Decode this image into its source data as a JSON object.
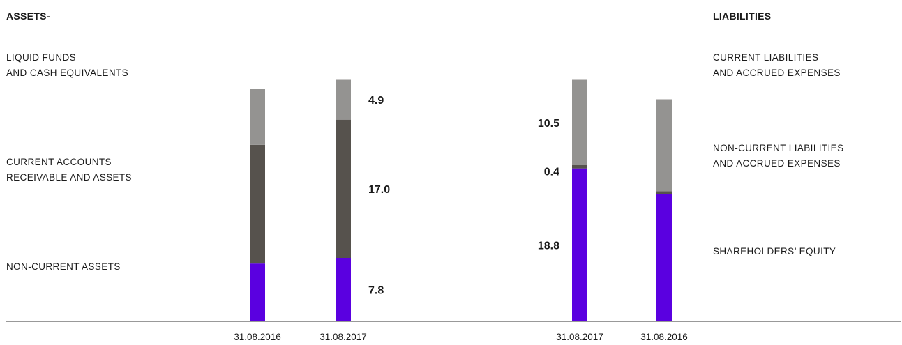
{
  "colors": {
    "non_current_assets": "#5a00e0",
    "current_assets": "#56524d",
    "liquid_funds": "#949391",
    "equity": "#5a00e0",
    "non_current_liabilities": "#56524d",
    "current_liabilities": "#949391",
    "axis": "#333333"
  },
  "headers": {
    "assets": "ASSETS-",
    "liabilities": "LIABILITIES"
  },
  "assets_labels": {
    "liquid_line1": "LIQUID FUNDS",
    "liquid_line2": "AND CASH EQUIVALENTS",
    "current_line1": "CURRENT ACCOUNTS",
    "current_line2": "RECEIVABLE AND ASSETS",
    "noncurrent": "NON-CURRENT ASSETS"
  },
  "liabilities_labels": {
    "current_line1": "CURRENT LIABILITIES",
    "current_line2": "AND ACCRUED EXPENSES",
    "noncurrent_line1": "NON-CURRENT LIABILITIES",
    "noncurrent_line2": "AND ACCRUED EXPENSES",
    "equity": "SHAREHOLDERS’ EQUITY"
  },
  "chart_data": [
    {
      "type": "bar",
      "stacked": true,
      "title": "ASSETS-",
      "categories": [
        "31.08.2016",
        "31.08.2017"
      ],
      "series": [
        {
          "name": "NON-CURRENT ASSETS",
          "values": [
            7.1,
            7.8
          ]
        },
        {
          "name": "CURRENT ACCOUNTS RECEIVABLE AND ASSETS",
          "values": [
            14.6,
            17.0
          ]
        },
        {
          "name": "LIQUID FUNDS AND CASH EQUIVALENTS",
          "values": [
            6.9,
            4.9
          ]
        }
      ],
      "data_labels": [
        "7.8",
        "17.0",
        "4.9"
      ],
      "ylim": [
        0,
        33
      ],
      "grid": false
    },
    {
      "type": "bar",
      "stacked": true,
      "title": "LIABILITIES",
      "categories": [
        "31.08.2017",
        "31.08.2016"
      ],
      "series": [
        {
          "name": "SHAREHOLDERS’ EQUITY",
          "values": [
            18.8,
            15.6
          ]
        },
        {
          "name": "NON-CURRENT LIABILITIES AND ACCRUED EXPENSES",
          "values": [
            0.4,
            0.4
          ]
        },
        {
          "name": "CURRENT LIABILITIES AND ACCRUED EXPENSES",
          "values": [
            10.5,
            11.3
          ]
        }
      ],
      "data_labels": [
        "18.8",
        "0.4",
        "10.5"
      ],
      "ylim": [
        0,
        33
      ],
      "grid": false
    }
  ]
}
